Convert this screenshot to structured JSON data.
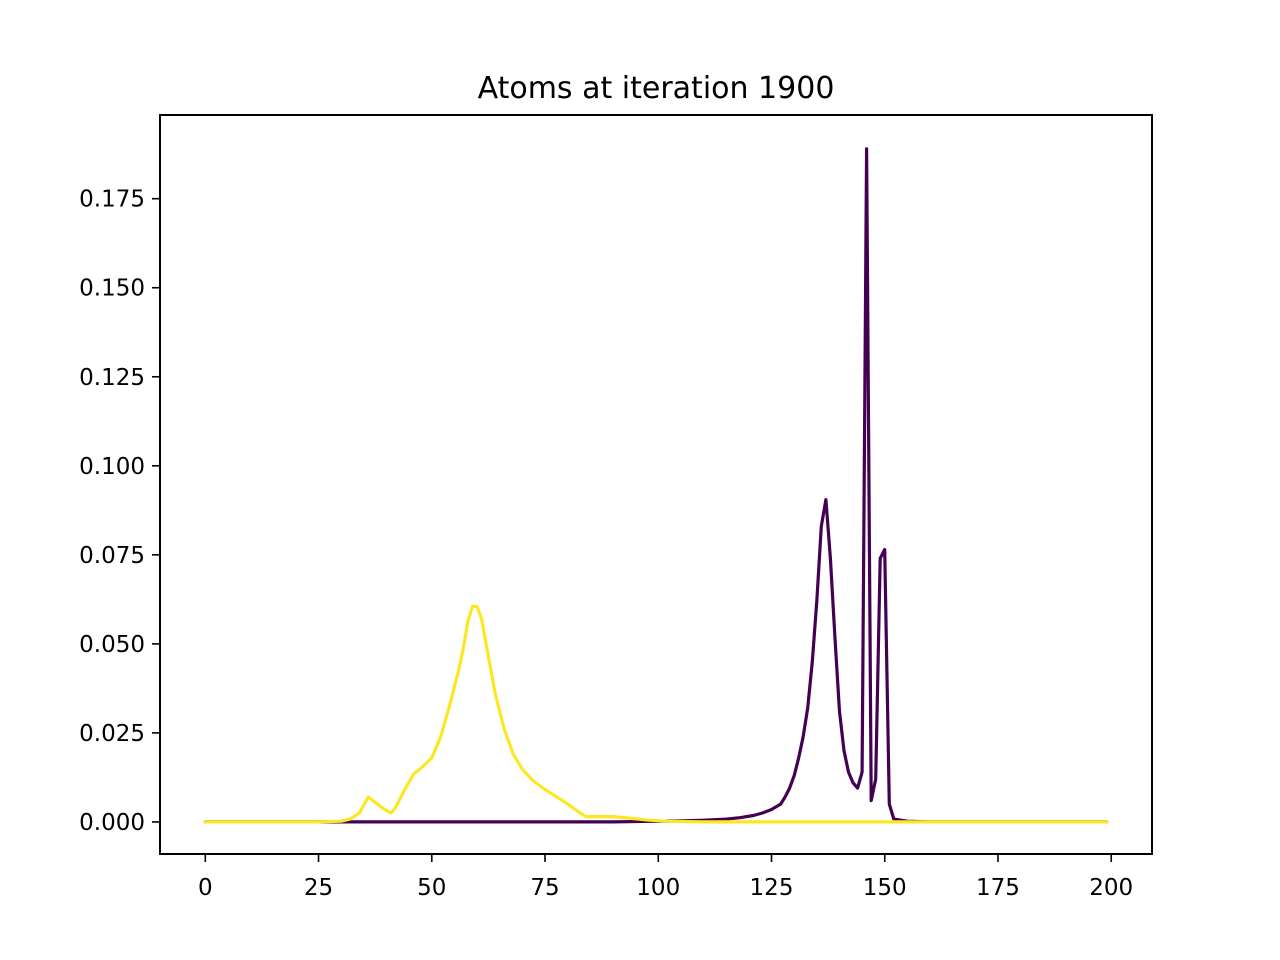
{
  "chart_data": {
    "type": "line",
    "title": "Atoms at iteration 1900",
    "xlabel": "",
    "ylabel": "",
    "xlim": [
      -10,
      209
    ],
    "ylim": [
      -0.009,
      0.1985
    ],
    "grid": false,
    "x_ticks": [
      0,
      25,
      50,
      75,
      100,
      125,
      150,
      175,
      200
    ],
    "x_tick_labels": [
      "0",
      "25",
      "50",
      "75",
      "100",
      "125",
      "150",
      "175",
      "200"
    ],
    "y_ticks": [
      0.0,
      0.025,
      0.05,
      0.075,
      0.1,
      0.125,
      0.15,
      0.175
    ],
    "y_tick_labels": [
      "0.000",
      "0.025",
      "0.050",
      "0.075",
      "0.100",
      "0.125",
      "0.150",
      "0.175"
    ],
    "series": [
      {
        "color": "#440154",
        "points": [
          [
            0,
            0.0
          ],
          [
            30,
            0.0
          ],
          [
            60,
            0.0
          ],
          [
            90,
            0.0
          ],
          [
            100,
            0.0002
          ],
          [
            105,
            0.0003
          ],
          [
            110,
            0.0005
          ],
          [
            115,
            0.0008
          ],
          [
            118,
            0.0012
          ],
          [
            121,
            0.0018
          ],
          [
            123,
            0.0025
          ],
          [
            125,
            0.0035
          ],
          [
            127,
            0.005
          ],
          [
            128,
            0.007
          ],
          [
            129,
            0.0095
          ],
          [
            130,
            0.013
          ],
          [
            131,
            0.018
          ],
          [
            132,
            0.024
          ],
          [
            133,
            0.032
          ],
          [
            134,
            0.045
          ],
          [
            135,
            0.062
          ],
          [
            136,
            0.083
          ],
          [
            137,
            0.0905
          ],
          [
            138,
            0.074
          ],
          [
            139,
            0.052
          ],
          [
            140,
            0.031
          ],
          [
            141,
            0.02
          ],
          [
            142,
            0.014
          ],
          [
            143,
            0.011
          ],
          [
            144,
            0.0095
          ],
          [
            145,
            0.014
          ],
          [
            146,
            0.189
          ],
          [
            147,
            0.006
          ],
          [
            148,
            0.012
          ],
          [
            149,
            0.074
          ],
          [
            150,
            0.0765
          ],
          [
            151,
            0.005
          ],
          [
            152,
            0.0008
          ],
          [
            155,
            0.0002
          ],
          [
            160,
            0.0
          ],
          [
            199,
            0.0
          ]
        ]
      },
      {
        "color": "#fde725",
        "points": [
          [
            0,
            0.0
          ],
          [
            25,
            0.0
          ],
          [
            30,
            0.0002
          ],
          [
            32,
            0.0008
          ],
          [
            34,
            0.0025
          ],
          [
            36,
            0.007
          ],
          [
            37,
            0.006
          ],
          [
            39,
            0.004
          ],
          [
            41,
            0.0025
          ],
          [
            42,
            0.004
          ],
          [
            44,
            0.009
          ],
          [
            46,
            0.0135
          ],
          [
            48,
            0.0155
          ],
          [
            50,
            0.018
          ],
          [
            52,
            0.024
          ],
          [
            54,
            0.033
          ],
          [
            56,
            0.043
          ],
          [
            57,
            0.049
          ],
          [
            58,
            0.0565
          ],
          [
            59,
            0.0605
          ],
          [
            60,
            0.0605
          ],
          [
            61,
            0.057
          ],
          [
            62,
            0.05
          ],
          [
            64,
            0.036
          ],
          [
            66,
            0.026
          ],
          [
            68,
            0.019
          ],
          [
            70,
            0.0148
          ],
          [
            72,
            0.012
          ],
          [
            74,
            0.01
          ],
          [
            76,
            0.0083
          ],
          [
            78,
            0.0067
          ],
          [
            80,
            0.005
          ],
          [
            82,
            0.0032
          ],
          [
            84,
            0.0015
          ],
          [
            86,
            0.0015
          ],
          [
            90,
            0.0015
          ],
          [
            94,
            0.001
          ],
          [
            98,
            0.0005
          ],
          [
            102,
            0.0002
          ],
          [
            110,
            0.0
          ],
          [
            199,
            0.0
          ]
        ]
      }
    ]
  }
}
